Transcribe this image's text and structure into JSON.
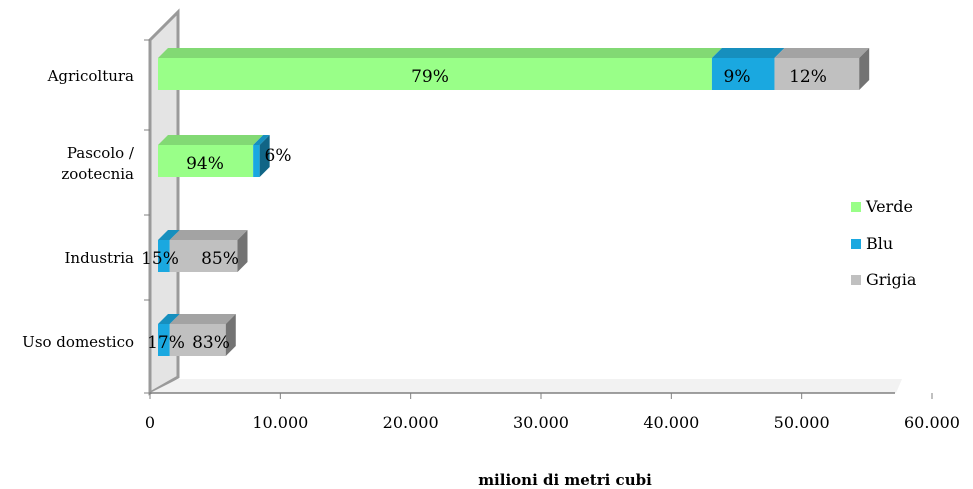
{
  "chart_data": {
    "type": "bar",
    "orientation": "horizontal",
    "stacked": true,
    "style": "3d",
    "categories": [
      "Agricoltura",
      "Pascolo / zootecnia",
      "Industria",
      "Uso domestico"
    ],
    "category_lines": [
      [
        "Agricoltura"
      ],
      [
        "Pascolo /",
        "zootecnia"
      ],
      [
        "Industria"
      ],
      [
        "Uso domestico"
      ]
    ],
    "series": [
      {
        "name": "Verde",
        "color": "#99ff88",
        "values": [
          42500,
          7300,
          0,
          0
        ],
        "labels": [
          "79%",
          "94%",
          "",
          ""
        ]
      },
      {
        "name": "Blu",
        "color": "#1aa8e0",
        "values": [
          4800,
          500,
          900,
          900
        ],
        "labels": [
          "9%",
          "6%",
          "15%",
          "17%"
        ]
      },
      {
        "name": "Grigia",
        "color": "#c0c0c0",
        "values": [
          6500,
          0,
          5200,
          4300
        ],
        "labels": [
          "12%",
          "",
          "85%",
          "83%"
        ]
      }
    ],
    "xlim": [
      0,
      60000
    ],
    "x_ticks": [
      0,
      10000,
      20000,
      30000,
      40000,
      50000,
      60000
    ],
    "x_tick_labels": [
      "0",
      "10.000",
      "20.000",
      "30.000",
      "40.000",
      "50.000",
      "60.000"
    ],
    "xlabel": "milioni di metri cubi",
    "ylabel": "",
    "title": "",
    "legend_position": "right",
    "grid": false
  }
}
